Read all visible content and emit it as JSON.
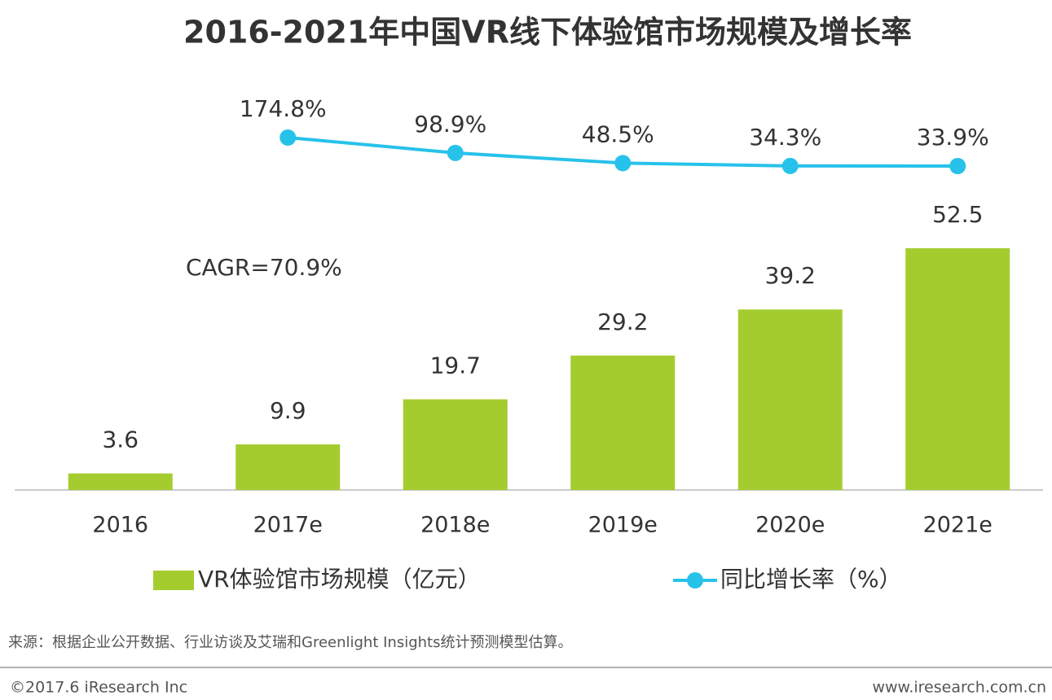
{
  "chart_data": {
    "type": "bar_line",
    "title": "2016-2021年中国VR线下体验馆市场规模及增长率",
    "categories": [
      "2016",
      "2017e",
      "2018e",
      "2019e",
      "2020e",
      "2021e"
    ],
    "series": [
      {
        "name": "VR体验馆市场规模（亿元）",
        "type": "bar",
        "color": "#a5cc2f",
        "values": [
          3.6,
          9.9,
          19.7,
          29.2,
          39.2,
          52.5
        ]
      },
      {
        "name": "同比增长率（%）",
        "type": "line",
        "color": "#27c2ea",
        "values": [
          null,
          174.8,
          98.9,
          48.5,
          34.3,
          33.9
        ],
        "value_labels": [
          null,
          "174.8%",
          "98.9%",
          "48.5%",
          "34.3%",
          "33.9%"
        ]
      }
    ],
    "annotation": "CAGR=70.9%",
    "source": "来源：根据企业公开数据、行业访谈及艾瑞和Greenlight Insights统计预测模型估算。",
    "footer_left": "©2017.6 iResearch Inc",
    "footer_right": "www.iresearch.com.cn"
  }
}
